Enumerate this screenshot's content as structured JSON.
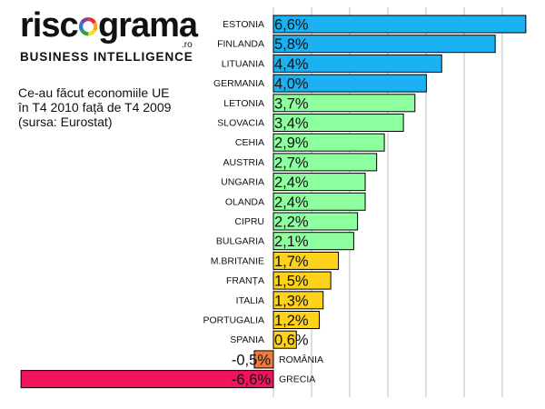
{
  "brand": {
    "left_word": "risc",
    "right_word": "grama",
    "domain": ".ro",
    "tagline": "BUSINESS INTELLIGENCE"
  },
  "description": {
    "line1": "Ce-au făcut economiile UE",
    "line2": "în T4 2010 față de T4 2009",
    "line3": "(sursa: Eurostat)"
  },
  "colors": {
    "blue": "#1ab2f2",
    "green": "#8eff9e",
    "yellow": "#ffd21c",
    "orange": "#f07a3a",
    "red": "#f2145a",
    "grid": "#bdbdbd",
    "logo_ring": [
      "#e8332a",
      "#f7a51c",
      "#f5e11d",
      "#2ca442",
      "#2a7dd1",
      "#8c3e98"
    ]
  },
  "chart_data": {
    "type": "bar",
    "orientation": "horizontal",
    "unit": "%",
    "xlim": [
      -6.6,
      6.6
    ],
    "grid": true,
    "categories": [
      "ESTONIA",
      "FINLANDA",
      "LITUANIA",
      "GERMANIA",
      "LETONIA",
      "SLOVACIA",
      "CEHIA",
      "AUSTRIA",
      "UNGARIA",
      "OLANDA",
      "CIPRU",
      "BULGARIA",
      "M.BRITANIE",
      "FRANȚA",
      "ITALIA",
      "PORTUGALIA",
      "SPANIA",
      "ROMÂNIA",
      "GRECIA"
    ],
    "values": [
      6.6,
      5.8,
      4.4,
      4.0,
      3.7,
      3.4,
      2.9,
      2.7,
      2.4,
      2.4,
      2.2,
      2.1,
      1.7,
      1.5,
      1.3,
      1.2,
      0.6,
      -0.5,
      -6.6
    ],
    "value_labels": [
      "6,6%",
      "5,8%",
      "4,4%",
      "4,0%",
      "3,7%",
      "3,4%",
      "2,9%",
      "2,7%",
      "2,4%",
      "2,4%",
      "2,2%",
      "2,1%",
      "1,7%",
      "1,5%",
      "1,3%",
      "1,2%",
      "0,6%",
      "-0,5%",
      "-6,6%"
    ],
    "color_groups": [
      "blue",
      "blue",
      "blue",
      "blue",
      "green",
      "green",
      "green",
      "green",
      "green",
      "green",
      "green",
      "green",
      "yellow",
      "yellow",
      "yellow",
      "yellow",
      "yellow",
      "orange",
      "red"
    ]
  }
}
